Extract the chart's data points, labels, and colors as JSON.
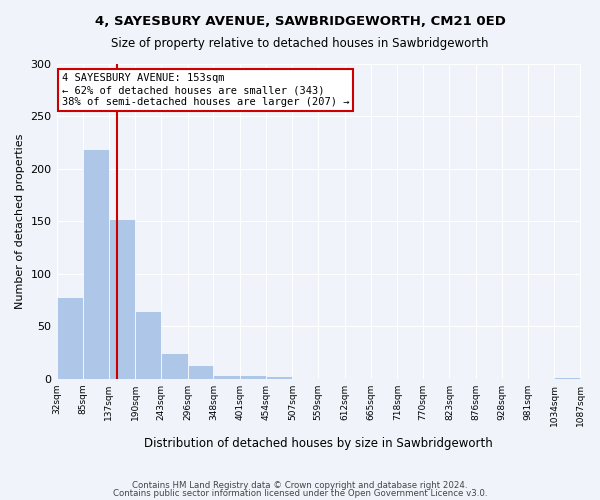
{
  "title1": "4, SAYESBURY AVENUE, SAWBRIDGEWORTH, CM21 0ED",
  "title2": "Size of property relative to detached houses in Sawbridgeworth",
  "xlabel": "Distribution of detached houses by size in Sawbridgeworth",
  "ylabel": "Number of detached properties",
  "footer1": "Contains HM Land Registry data © Crown copyright and database right 2024.",
  "footer2": "Contains public sector information licensed under the Open Government Licence v3.0.",
  "annotation_line1": "4 SAYESBURY AVENUE: 153sqm",
  "annotation_line2": "← 62% of detached houses are smaller (343)",
  "annotation_line3": "38% of semi-detached houses are larger (207) →",
  "property_size": 153,
  "bin_edges": [
    32,
    85,
    137,
    190,
    243,
    296,
    348,
    401,
    454,
    507,
    559,
    612,
    665,
    718,
    770,
    823,
    876,
    928,
    981,
    1034,
    1087
  ],
  "bar_heights": [
    78,
    219,
    152,
    65,
    25,
    13,
    4,
    4,
    3,
    0,
    0,
    1,
    0,
    0,
    0,
    0,
    0,
    0,
    0,
    2
  ],
  "bar_color": "#aec6e8",
  "bar_edge_color": "#aec6e8",
  "vline_color": "#cc0000",
  "vline_x": 153,
  "annotation_box_color": "#ffffff",
  "annotation_box_edge_color": "#cc0000",
  "background_color": "#f0f4fa",
  "ylim": [
    0,
    300
  ],
  "tick_labels": [
    "32sqm",
    "85sqm",
    "137sqm",
    "190sqm",
    "243sqm",
    "296sqm",
    "348sqm",
    "401sqm",
    "454sqm",
    "507sqm",
    "559sqm",
    "612sqm",
    "665sqm",
    "718sqm",
    "770sqm",
    "823sqm",
    "876sqm",
    "928sqm",
    "981sqm",
    "1034sqm",
    "1087sqm"
  ]
}
